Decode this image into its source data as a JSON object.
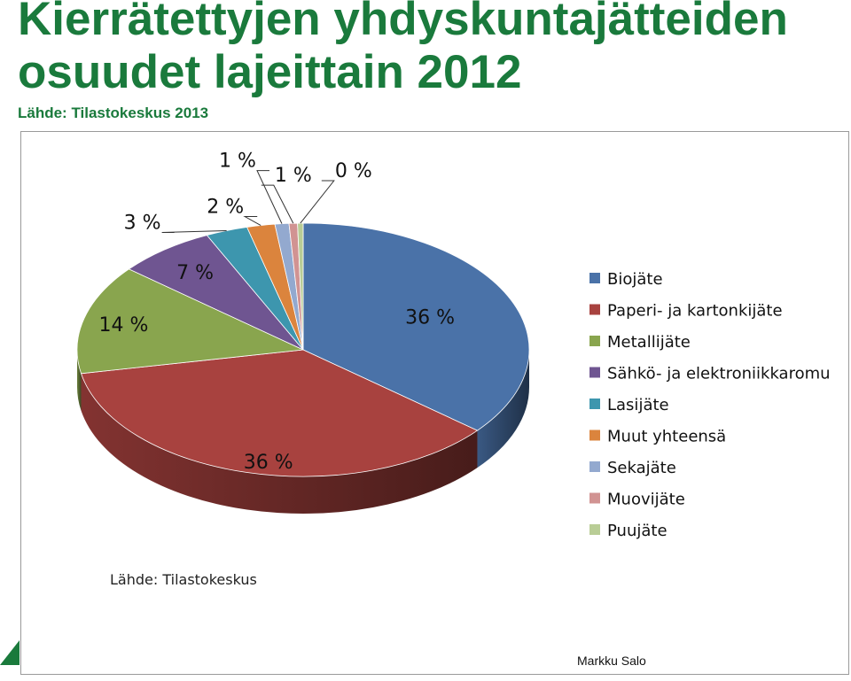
{
  "slide": {
    "title": "Kierrätettyjen yhdyskuntajätteiden osuudet lajeittain 2012",
    "subtitle": "Lähde: Tilastokeskus 2013",
    "source_note": "Lähde: Tilastokeskus",
    "author": "Markku Salo"
  },
  "chart_data": {
    "type": "pie",
    "title": "",
    "categories": [
      "Biojäte",
      "Paperi- ja kartonkijäte",
      "Metallijäte",
      "Sähkö- ja elektroniikkaromu",
      "Lasijäte",
      "Muut yhteensä",
      "Sekajäte",
      "Muovijäte",
      "Puujäte"
    ],
    "values": [
      36,
      36,
      14,
      7,
      3,
      2,
      1,
      1,
      0
    ],
    "data_labels": [
      "36 %",
      "36 %",
      "14 %",
      "7 %",
      "3 %",
      "2 %",
      "1 %",
      "1 %",
      "0 %"
    ],
    "plot_values": [
      36.0,
      36.0,
      14.0,
      7.0,
      3.0,
      2.0,
      1.0,
      0.6,
      0.4
    ],
    "colors": [
      "#4a72a8",
      "#a8423f",
      "#89a54e",
      "#6f5591",
      "#3d96ae",
      "#db843d",
      "#93a9cf",
      "#d19392",
      "#b9cd96"
    ],
    "legend": "right",
    "style": "3d"
  }
}
